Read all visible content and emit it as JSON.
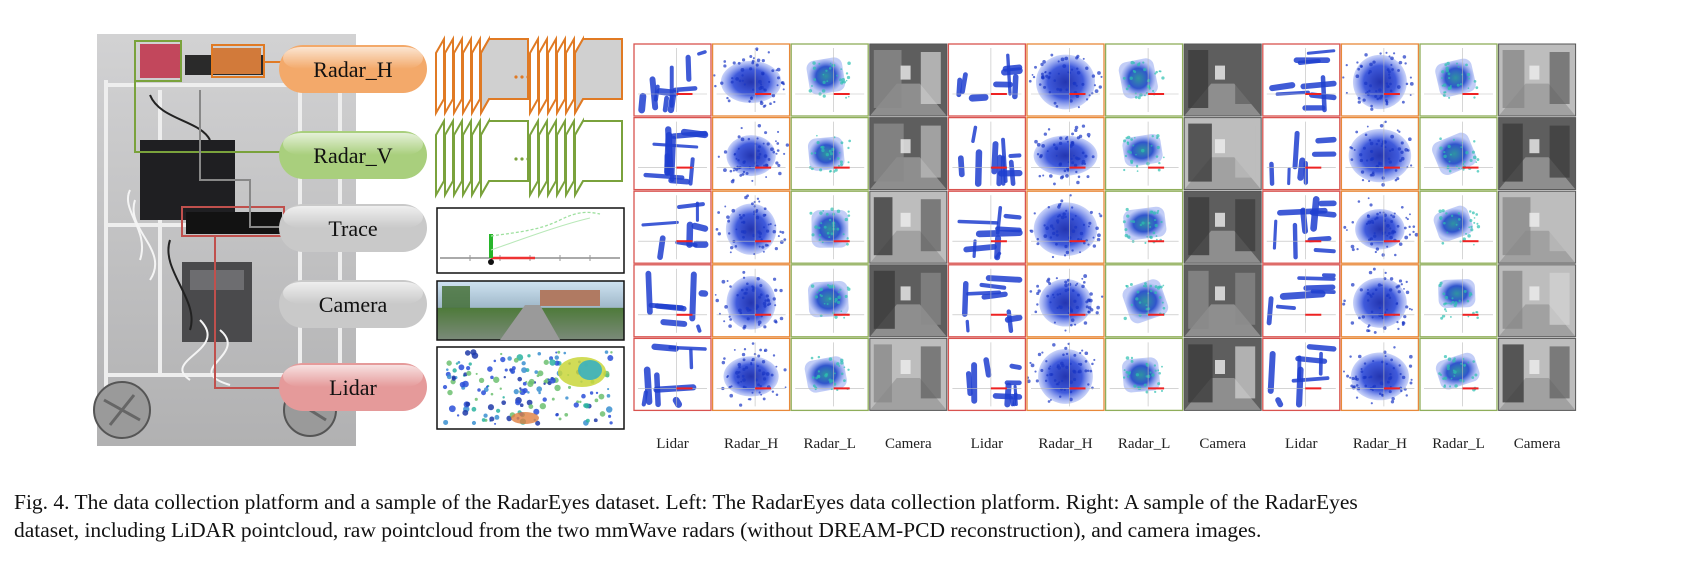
{
  "platform": {
    "labels": [
      "Radar_H",
      "Radar_V",
      "Trace",
      "Camera",
      "Lidar"
    ],
    "label_colors": [
      "#f3a96a",
      "#a9cf7d",
      "#c9c9c9",
      "#c9c9c9",
      "#e59a9a"
    ],
    "outline_colors": {
      "radar_h": "#e07a24",
      "radar_v": "#7aa23c",
      "trace": "#888888",
      "lidar": "#c0504d"
    }
  },
  "grid": {
    "column_labels": [
      "Lidar",
      "Radar_H",
      "Radar_L",
      "Camera",
      "Lidar",
      "Radar_H",
      "Radar_L",
      "Camera",
      "Lidar",
      "Radar_H",
      "Radar_L",
      "Camera"
    ],
    "border_colors": {
      "lidar": "#d9534f",
      "radar_h": "#e8893a",
      "radar_l": "#8fae5a",
      "camera": "#555555"
    },
    "point_color": "#1f3fd0"
  },
  "caption": {
    "line1": "Fig. 4.  The data collection platform and a sample of the RadarEyes dataset. Left: The RadarEyes data collection platform. Right: A sample of the RadarEyes",
    "line2": "dataset, including LiDAR pointcloud, raw pointcloud from the two mmWave radars (without DREAM-PCD reconstruction), and camera images."
  }
}
